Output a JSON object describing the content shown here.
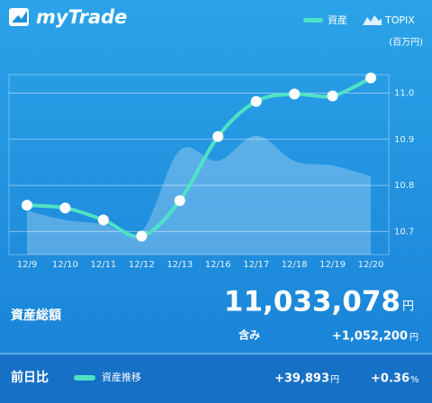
{
  "header": {
    "brand": "myTrade"
  },
  "chart_data": {
    "type": "line",
    "unit_label": "(百万円)",
    "categories": [
      "12/9",
      "12/10",
      "12/11",
      "12/12",
      "12/13",
      "12/16",
      "12/17",
      "12/18",
      "12/19",
      "12/20"
    ],
    "series": [
      {
        "name": "TOPIX",
        "color": "#ffffff",
        "style": "area",
        "values": [
          10.745,
          10.725,
          10.716,
          10.7,
          10.876,
          10.853,
          10.908,
          10.853,
          10.843,
          10.82
        ]
      },
      {
        "name": "資産",
        "color": "#4fe3c6",
        "style": "line",
        "values": [
          10.757,
          10.751,
          10.725,
          10.69,
          10.767,
          10.906,
          10.982,
          10.998,
          10.994,
          11.033
        ]
      }
    ],
    "ylim": [
      10.65,
      11.04
    ],
    "yticks": [
      10.7,
      10.8,
      10.9,
      {
        "value": 11,
        "label": "11.0"
      }
    ],
    "grid": true
  },
  "summary": {
    "total_label": "資産総額",
    "total": "11,033,078",
    "total_unit": "円",
    "gain_label": "含み",
    "gain": "+1,052,200",
    "gain_unit": "円"
  },
  "footer": {
    "label": "前日比",
    "legend": "資産推移",
    "change": "+39,893",
    "change_unit": "円",
    "change_pct": "+0.36",
    "pct_unit": "%"
  }
}
